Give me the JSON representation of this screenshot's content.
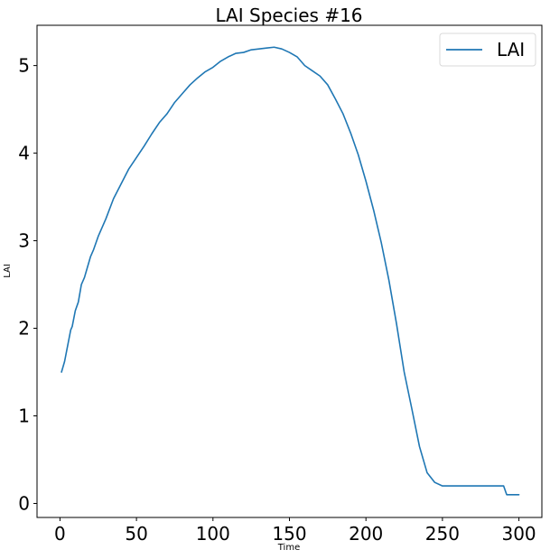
{
  "chart_data": {
    "type": "line",
    "title": "LAI Species #16",
    "xlabel": "Time",
    "ylabel": "LAI",
    "xlim": [
      -15,
      315
    ],
    "ylim": [
      -0.16,
      5.46
    ],
    "xticks": [
      0,
      50,
      100,
      150,
      200,
      250,
      300
    ],
    "yticks": [
      0,
      1,
      2,
      3,
      4,
      5
    ],
    "grid": false,
    "legend_position": "top-right",
    "series": [
      {
        "name": "LAI",
        "color": "#1f77b4",
        "x": [
          1,
          3,
          5,
          7,
          8,
          10,
          12,
          14,
          16,
          18,
          20,
          22,
          25,
          30,
          35,
          40,
          45,
          50,
          55,
          60,
          65,
          70,
          75,
          80,
          85,
          90,
          95,
          100,
          105,
          110,
          115,
          120,
          125,
          130,
          135,
          140,
          145,
          150,
          155,
          160,
          165,
          170,
          175,
          180,
          185,
          190,
          195,
          200,
          205,
          210,
          215,
          220,
          225,
          230,
          235,
          240,
          245,
          250,
          252,
          255,
          260,
          270,
          280,
          290,
          292,
          295,
          300
        ],
        "y": [
          1.5,
          1.62,
          1.8,
          1.98,
          2.02,
          2.2,
          2.3,
          2.5,
          2.58,
          2.7,
          2.82,
          2.9,
          3.05,
          3.25,
          3.48,
          3.65,
          3.82,
          3.95,
          4.08,
          4.22,
          4.35,
          4.45,
          4.58,
          4.68,
          4.78,
          4.86,
          4.93,
          4.98,
          5.05,
          5.1,
          5.14,
          5.15,
          5.18,
          5.19,
          5.2,
          5.21,
          5.19,
          5.15,
          5.1,
          5.0,
          4.94,
          4.88,
          4.78,
          4.62,
          4.45,
          4.23,
          3.98,
          3.68,
          3.35,
          2.98,
          2.55,
          2.05,
          1.5,
          1.08,
          0.65,
          0.35,
          0.24,
          0.2,
          0.2,
          0.2,
          0.2,
          0.2,
          0.2,
          0.2,
          0.1,
          0.1,
          0.1
        ]
      }
    ]
  }
}
